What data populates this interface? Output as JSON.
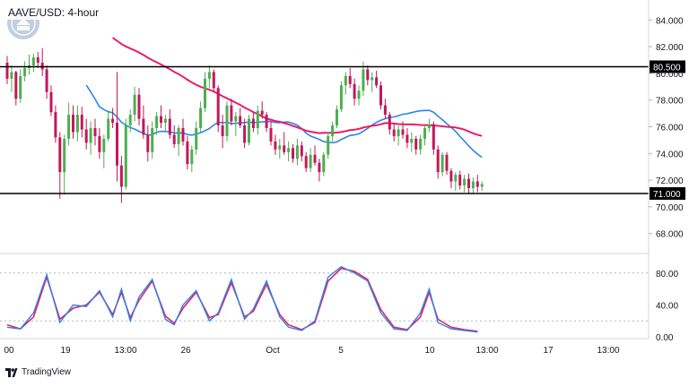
{
  "header": {
    "title": "AAVE/USD: 4-hour"
  },
  "footer": {
    "brand": "TradingView"
  },
  "colors": {
    "bull": "#4caf50",
    "bear": "#c2185b",
    "sma_fast": "#2b86e8",
    "sma_slow": "#e91e63",
    "stoch_k": "#2b86e8",
    "stoch_d": "#e91e63",
    "grid": "#b2b5be",
    "axis_text": "#131722"
  },
  "chart_data": [
    {
      "type": "candlestick",
      "title": "AAVE/USD: 4-hour",
      "x_ticks": [
        "00",
        "19",
        "13:00",
        "26",
        "Oct",
        "5",
        "10",
        "13:00",
        "17",
        "13:00"
      ],
      "y_ticks": [
        "84.000",
        "82.000",
        "80.000",
        "78.000",
        "76.000",
        "74.000",
        "72.000",
        "70.000",
        "68.000"
      ],
      "ylim": [
        66.5,
        85.5
      ],
      "horizontal_levels": [
        {
          "label": "80.500",
          "value": 80.5
        },
        {
          "label": "71.000",
          "value": 71.0
        }
      ],
      "ohlc": [
        [
          80.8,
          81.3,
          79.2,
          79.6
        ],
        [
          79.6,
          80.6,
          78.6,
          80.1
        ],
        [
          80.1,
          80.2,
          77.6,
          78.1
        ],
        [
          78.1,
          80.3,
          77.8,
          79.8
        ],
        [
          79.8,
          80.9,
          79.4,
          80.4
        ],
        [
          80.4,
          81.4,
          79.9,
          80.6
        ],
        [
          80.6,
          81.5,
          80.1,
          81.2
        ],
        [
          81.2,
          81.6,
          80.4,
          80.8
        ],
        [
          80.8,
          81.9,
          79.8,
          80.3
        ],
        [
          80.3,
          80.6,
          78.1,
          78.6
        ],
        [
          78.6,
          79.1,
          76.8,
          77.1
        ],
        [
          77.1,
          77.6,
          74.8,
          75.2
        ],
        [
          75.2,
          75.6,
          70.6,
          72.6
        ],
        [
          72.6,
          75.4,
          70.9,
          75.1
        ],
        [
          75.1,
          77.8,
          74.6,
          76.9
        ],
        [
          76.9,
          77.6,
          75.1,
          75.6
        ],
        [
          75.6,
          77.6,
          74.9,
          76.9
        ],
        [
          76.9,
          77.5,
          75.2,
          75.8
        ],
        [
          75.8,
          76.6,
          74.3,
          74.8
        ],
        [
          74.8,
          76.4,
          73.9,
          75.9
        ],
        [
          75.9,
          76.6,
          74.6,
          75.3
        ],
        [
          75.3,
          75.9,
          73.6,
          74.1
        ],
        [
          74.1,
          75.4,
          72.9,
          75.1
        ],
        [
          75.1,
          77.1,
          74.9,
          76.6
        ],
        [
          76.6,
          77.4,
          75.9,
          76.3
        ],
        [
          76.3,
          80.1,
          71.9,
          73.1
        ],
        [
          73.1,
          73.8,
          70.3,
          71.5
        ],
        [
          71.5,
          76.6,
          71.3,
          76.1
        ],
        [
          76.1,
          77.3,
          75.6,
          76.9
        ],
        [
          76.9,
          79.0,
          76.4,
          78.4
        ],
        [
          78.4,
          78.9,
          76.1,
          76.6
        ],
        [
          76.6,
          77.6,
          75.1,
          75.4
        ],
        [
          75.4,
          76.1,
          73.4,
          74.1
        ],
        [
          74.1,
          76.4,
          73.6,
          75.9
        ],
        [
          75.9,
          77.1,
          75.4,
          76.8
        ],
        [
          76.8,
          77.6,
          75.9,
          76.3
        ],
        [
          76.3,
          76.9,
          75.6,
          76.6
        ],
        [
          76.6,
          77.3,
          75.1,
          75.4
        ],
        [
          75.4,
          76.1,
          74.4,
          74.7
        ],
        [
          74.7,
          76.1,
          73.8,
          75.9
        ],
        [
          75.9,
          76.6,
          74.6,
          74.9
        ],
        [
          74.9,
          75.3,
          72.8,
          73.2
        ],
        [
          73.2,
          74.6,
          72.6,
          74.3
        ],
        [
          74.3,
          76.4,
          73.9,
          75.9
        ],
        [
          75.9,
          77.9,
          75.6,
          77.4
        ],
        [
          77.4,
          80.1,
          77.1,
          79.6
        ],
        [
          79.6,
          80.6,
          78.9,
          80.1
        ],
        [
          80.1,
          80.3,
          78.6,
          78.9
        ],
        [
          78.9,
          79.1,
          75.6,
          76.1
        ],
        [
          76.1,
          76.9,
          74.4,
          75.3
        ],
        [
          75.3,
          77.9,
          74.9,
          77.6
        ],
        [
          77.6,
          78.1,
          76.1,
          76.4
        ],
        [
          76.4,
          77.1,
          75.3,
          76.8
        ],
        [
          76.8,
          77.4,
          75.9,
          76.1
        ],
        [
          76.1,
          76.6,
          74.4,
          74.8
        ],
        [
          74.8,
          76.9,
          74.6,
          76.6
        ],
        [
          76.6,
          77.1,
          75.6,
          75.9
        ],
        [
          75.9,
          77.6,
          75.4,
          77.2
        ],
        [
          77.2,
          77.9,
          76.6,
          76.9
        ],
        [
          76.9,
          77.1,
          75.6,
          75.9
        ],
        [
          75.9,
          76.4,
          74.6,
          74.9
        ],
        [
          74.9,
          75.4,
          73.9,
          74.3
        ],
        [
          74.3,
          75.1,
          73.6,
          74.6
        ],
        [
          74.6,
          75.6,
          73.9,
          74.1
        ],
        [
          74.1,
          74.9,
          73.4,
          74.4
        ],
        [
          74.4,
          74.7,
          73.3,
          73.6
        ],
        [
          73.6,
          75.1,
          73.1,
          74.6
        ],
        [
          74.6,
          74.9,
          73.4,
          73.8
        ],
        [
          73.8,
          74.1,
          72.6,
          72.9
        ],
        [
          72.9,
          74.4,
          72.6,
          73.9
        ],
        [
          73.9,
          74.6,
          73.1,
          73.3
        ],
        [
          73.3,
          73.6,
          71.9,
          72.6
        ],
        [
          72.6,
          74.1,
          72.3,
          73.9
        ],
        [
          73.9,
          75.6,
          73.6,
          75.3
        ],
        [
          75.3,
          76.4,
          74.9,
          76.1
        ],
        [
          76.1,
          77.6,
          75.9,
          77.3
        ],
        [
          77.3,
          79.4,
          77.1,
          79.1
        ],
        [
          79.1,
          80.1,
          78.4,
          79.8
        ],
        [
          79.8,
          80.4,
          78.9,
          79.2
        ],
        [
          79.2,
          79.6,
          77.6,
          78.1
        ],
        [
          78.1,
          79.1,
          77.6,
          78.7
        ],
        [
          78.7,
          80.9,
          78.3,
          80.3
        ],
        [
          80.3,
          80.6,
          79.1,
          79.5
        ],
        [
          79.5,
          80.1,
          78.6,
          79.7
        ],
        [
          79.7,
          80.2,
          78.9,
          79.1
        ],
        [
          79.1,
          79.4,
          77.3,
          77.6
        ],
        [
          77.6,
          78.1,
          76.6,
          76.9
        ],
        [
          76.9,
          77.1,
          75.4,
          75.8
        ],
        [
          75.8,
          76.3,
          74.9,
          75.3
        ],
        [
          75.3,
          76.1,
          74.6,
          75.8
        ],
        [
          75.8,
          76.4,
          75.1,
          75.4
        ],
        [
          75.4,
          75.9,
          74.4,
          74.8
        ],
        [
          74.8,
          75.6,
          74.1,
          75.1
        ],
        [
          75.1,
          75.3,
          73.9,
          74.3
        ],
        [
          74.3,
          75.4,
          73.9,
          75.1
        ],
        [
          75.1,
          76.1,
          74.6,
          75.9
        ],
        [
          75.9,
          76.6,
          75.6,
          76.2
        ],
        [
          76.2,
          76.4,
          73.9,
          74.3
        ],
        [
          74.3,
          74.6,
          72.1,
          72.6
        ],
        [
          72.6,
          74.1,
          72.3,
          73.9
        ],
        [
          73.9,
          74.1,
          72.4,
          72.7
        ],
        [
          72.7,
          72.9,
          71.4,
          71.9
        ],
        [
          71.9,
          72.6,
          71.2,
          72.4
        ],
        [
          72.4,
          72.7,
          71.3,
          71.6
        ],
        [
          71.6,
          72.4,
          71.1,
          72.1
        ],
        [
          72.1,
          72.5,
          71.0,
          71.4
        ],
        [
          71.4,
          72.2,
          71.0,
          71.9
        ],
        [
          71.9,
          72.4,
          71.1,
          71.5
        ],
        [
          71.5,
          71.9,
          71.2,
          71.7
        ]
      ]
    },
    {
      "type": "line",
      "name": "Stochastic",
      "y_ticks": [
        "80.00",
        "40.00",
        "0.00"
      ],
      "ylim": [
        0,
        100
      ],
      "dashed_levels": [
        80,
        20
      ],
      "k_points": [
        [
          0,
          12
        ],
        [
          3,
          10
        ],
        [
          6,
          30
        ],
        [
          9,
          78
        ],
        [
          12,
          18
        ],
        [
          15,
          40
        ],
        [
          18,
          38
        ],
        [
          21,
          58
        ],
        [
          24,
          25
        ],
        [
          26,
          60
        ],
        [
          28,
          20
        ],
        [
          30,
          50
        ],
        [
          33,
          72
        ],
        [
          36,
          22
        ],
        [
          38,
          15
        ],
        [
          40,
          40
        ],
        [
          43,
          58
        ],
        [
          46,
          20
        ],
        [
          48,
          30
        ],
        [
          51,
          72
        ],
        [
          54,
          22
        ],
        [
          56,
          35
        ],
        [
          59,
          70
        ],
        [
          62,
          25
        ],
        [
          64,
          12
        ],
        [
          67,
          8
        ],
        [
          70,
          20
        ],
        [
          73,
          75
        ],
        [
          76,
          88
        ],
        [
          79,
          80
        ],
        [
          82,
          70
        ],
        [
          85,
          30
        ],
        [
          88,
          10
        ],
        [
          91,
          8
        ],
        [
          94,
          30
        ],
        [
          96,
          60
        ],
        [
          98,
          18
        ],
        [
          101,
          10
        ],
        [
          104,
          8
        ],
        [
          107,
          6
        ]
      ],
      "d_points": [
        [
          0,
          15
        ],
        [
          3,
          10
        ],
        [
          6,
          25
        ],
        [
          9,
          75
        ],
        [
          12,
          22
        ],
        [
          15,
          36
        ],
        [
          18,
          40
        ],
        [
          21,
          56
        ],
        [
          24,
          28
        ],
        [
          26,
          56
        ],
        [
          28,
          24
        ],
        [
          30,
          46
        ],
        [
          33,
          70
        ],
        [
          36,
          26
        ],
        [
          38,
          17
        ],
        [
          40,
          36
        ],
        [
          43,
          56
        ],
        [
          46,
          24
        ],
        [
          48,
          28
        ],
        [
          51,
          68
        ],
        [
          54,
          25
        ],
        [
          56,
          32
        ],
        [
          59,
          66
        ],
        [
          62,
          28
        ],
        [
          64,
          15
        ],
        [
          67,
          9
        ],
        [
          70,
          18
        ],
        [
          73,
          70
        ],
        [
          76,
          86
        ],
        [
          79,
          82
        ],
        [
          82,
          72
        ],
        [
          85,
          34
        ],
        [
          88,
          12
        ],
        [
          91,
          9
        ],
        [
          94,
          25
        ],
        [
          96,
          56
        ],
        [
          98,
          22
        ],
        [
          101,
          12
        ],
        [
          104,
          9
        ],
        [
          107,
          7
        ]
      ]
    }
  ]
}
